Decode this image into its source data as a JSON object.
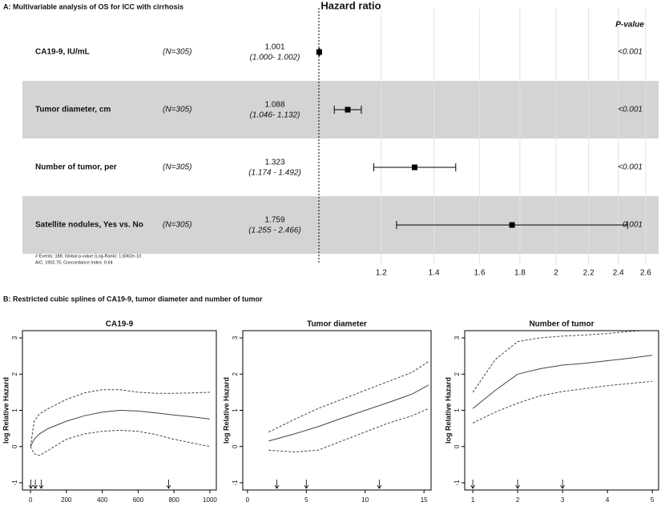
{
  "panel_titles": [
    "A: Multivariable analysis of OS for ICC with cirrhosis",
    "B: Restricted cubic splines of CA19-9, tumor diameter and number of tumor"
  ],
  "chart_data": [
    {
      "type": "forest",
      "xlabel": "Hazard ratio",
      "pvalue_header": "P-value",
      "categories": [
        "CA19-9, IU/mL",
        "Tumor diameter, cm",
        "Number of tumor, per",
        "Satellite nodules, Yes vs. No"
      ],
      "n_labels": [
        "(N=305)",
        "(N=305)",
        "(N=305)",
        "(N=305)"
      ],
      "values": [
        1.001,
        1.088,
        1.323,
        1.759
      ],
      "lower": [
        1.0,
        1.046,
        1.174,
        1.255
      ],
      "upper": [
        1.002,
        1.132,
        1.492,
        2.466
      ],
      "ci_labels": [
        "(1.000- 1.002)",
        "(1.046- 1.132)",
        "(1.174 - 1.492)",
        "(1.255 - 2.466)"
      ],
      "p_values": [
        "<0.001",
        "<0.001",
        "<0.001",
        "0.001"
      ],
      "footnotes": [
        "# Events: 188; Global p-value (Log-Rank): 1.8362e-10",
        "AIC: 1902.75; Concordance Index: 0.64"
      ],
      "reference": 1,
      "log": true,
      "xlim": [
        1,
        2.7
      ],
      "xticks": [
        1.2,
        1.4,
        1.6,
        1.8,
        2,
        2.2,
        2.4,
        2.6
      ],
      "grid": true,
      "color": "#000000",
      "band_color": "#d4d4d4"
    },
    {
      "type": "line",
      "title": "CA19-9",
      "ylabel": "log Relative Hazard",
      "x": [
        0,
        20,
        50,
        100,
        200,
        300,
        400,
        500,
        600,
        700,
        800,
        900,
        1000
      ],
      "series": [
        {
          "color": "#444444",
          "style": "solid",
          "values": [
            0,
            0.2,
            0.35,
            0.5,
            0.7,
            0.85,
            0.95,
            1.0,
            0.98,
            0.93,
            0.87,
            0.82,
            0.76
          ]
        },
        {
          "color": "#444444",
          "style": "dashed",
          "values": [
            0,
            0.7,
            0.9,
            1.05,
            1.3,
            1.48,
            1.57,
            1.57,
            1.5,
            1.47,
            1.47,
            1.48,
            1.5
          ]
        },
        {
          "color": "#444444",
          "style": "dashed",
          "values": [
            0,
            -0.2,
            -0.25,
            -0.1,
            0.2,
            0.35,
            0.42,
            0.45,
            0.42,
            0.33,
            0.2,
            0.1,
            0.0
          ]
        }
      ],
      "knots": [
        2,
        27,
        60,
        770
      ],
      "xlim": [
        -45,
        1036
      ],
      "ylim": [
        -1.2,
        3.2
      ],
      "xticks": [
        0,
        200,
        400,
        600,
        800,
        1000
      ],
      "yticks": [
        -1,
        0,
        1,
        2,
        3
      ]
    },
    {
      "type": "line",
      "title": "Tumor diameter",
      "ylabel": "log Relative Hazard",
      "x": [
        1.8,
        4,
        6,
        8,
        10,
        12,
        14,
        15.4
      ],
      "series": [
        {
          "color": "#444444",
          "style": "solid",
          "values": [
            0.15,
            0.35,
            0.55,
            0.78,
            1.0,
            1.22,
            1.45,
            1.7
          ]
        },
        {
          "color": "#444444",
          "style": "dashed",
          "values": [
            0.4,
            0.75,
            1.05,
            1.3,
            1.55,
            1.8,
            2.05,
            2.35
          ]
        },
        {
          "color": "#444444",
          "style": "dashed",
          "values": [
            -0.1,
            -0.15,
            -0.1,
            0.15,
            0.4,
            0.65,
            0.85,
            1.05
          ]
        }
      ],
      "knots": [
        2.5,
        5,
        11.2
      ],
      "xlim": [
        -0.4,
        15.6
      ],
      "ylim": [
        -1.2,
        3.2
      ],
      "xticks": [
        0,
        5,
        10,
        15
      ],
      "yticks": [
        -1,
        0,
        1,
        2,
        3
      ]
    },
    {
      "type": "line",
      "title": "Number of tumor",
      "ylabel": "log Relative Hazard",
      "x": [
        1,
        1.5,
        2,
        2.5,
        3,
        3.5,
        4,
        4.5,
        5
      ],
      "series": [
        {
          "color": "#444444",
          "style": "solid",
          "values": [
            1.05,
            1.55,
            2.0,
            2.15,
            2.25,
            2.3,
            2.37,
            2.44,
            2.52
          ]
        },
        {
          "color": "#444444",
          "style": "dashed",
          "values": [
            1.5,
            2.4,
            2.9,
            3.0,
            3.05,
            3.08,
            3.12,
            3.18,
            3.22
          ]
        },
        {
          "color": "#444444",
          "style": "dashed",
          "values": [
            0.65,
            0.95,
            1.2,
            1.4,
            1.52,
            1.6,
            1.68,
            1.74,
            1.8
          ]
        }
      ],
      "knots": [
        1,
        2,
        3
      ],
      "xlim": [
        0.82,
        5.14
      ],
      "ylim": [
        -1.2,
        3.2
      ],
      "xticks": [
        1,
        2,
        3,
        4,
        5
      ],
      "yticks": [
        -1,
        0,
        1,
        2,
        3
      ]
    }
  ]
}
